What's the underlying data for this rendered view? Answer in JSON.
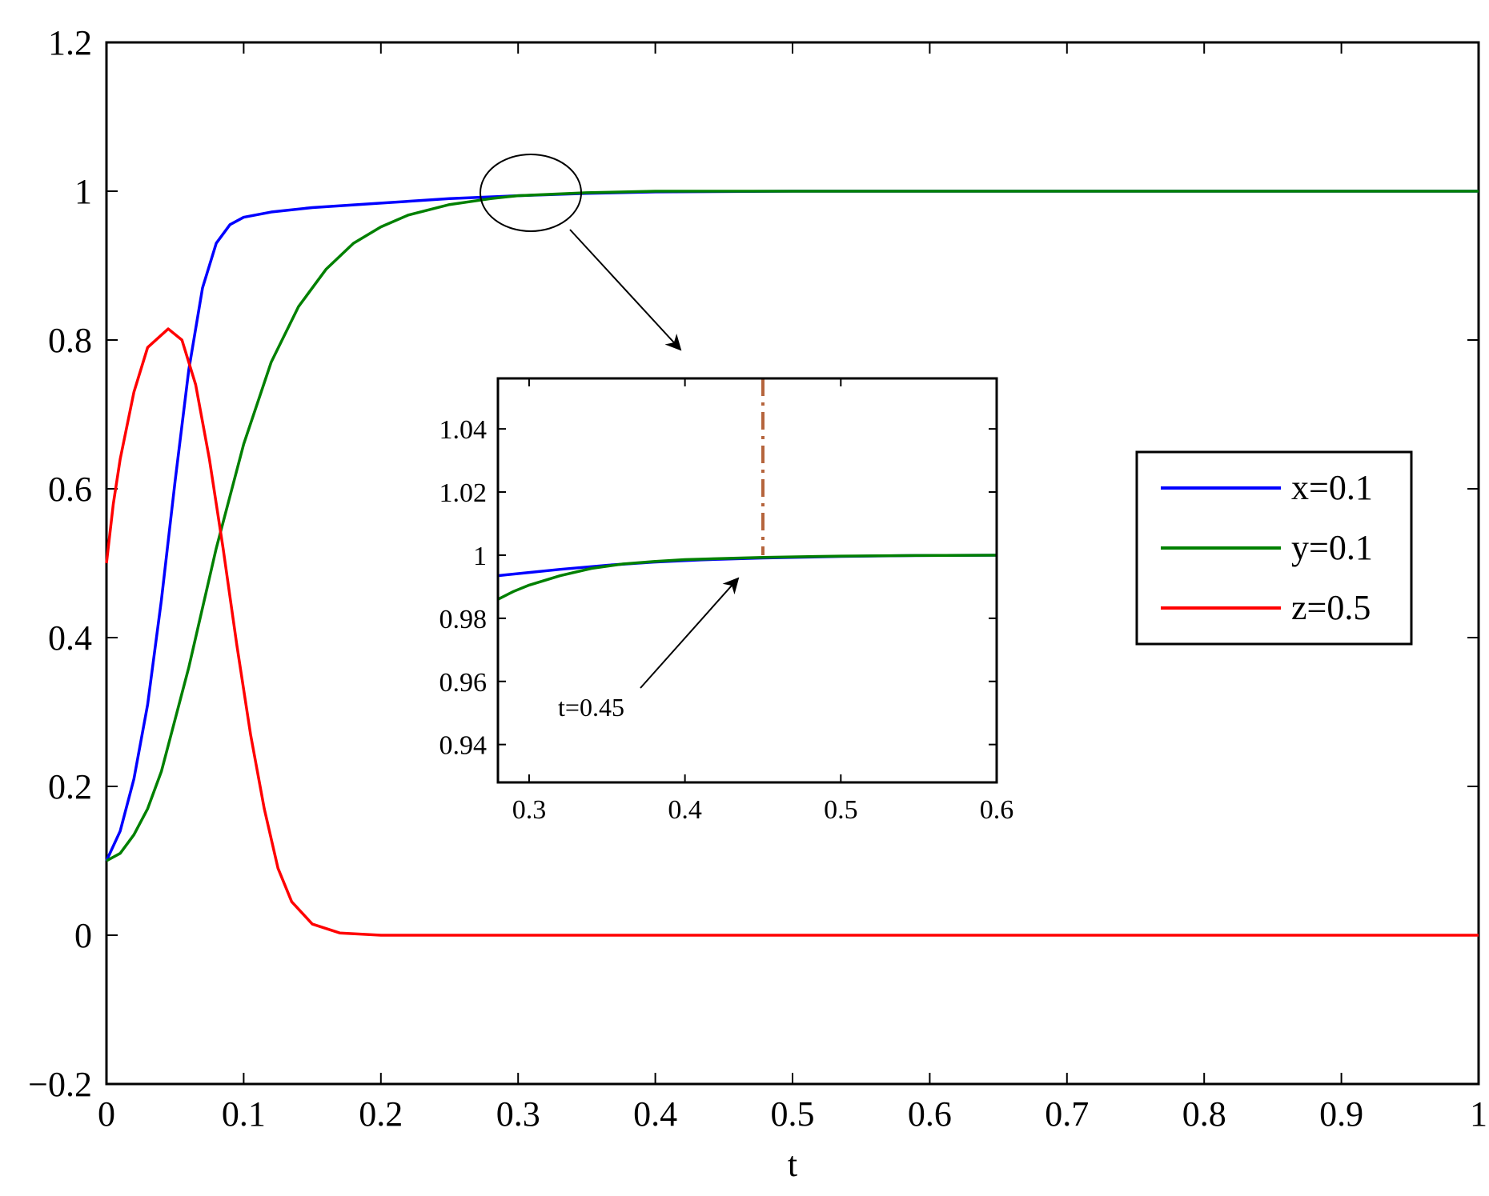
{
  "chart_data": [
    {
      "type": "line",
      "title": "",
      "xlabel": "t",
      "ylabel": "",
      "xlim": [
        0,
        1
      ],
      "ylim": [
        -0.2,
        1.2
      ],
      "x_ticks": [
        "0",
        "0.1",
        "0.2",
        "0.3",
        "0.4",
        "0.5",
        "0.6",
        "0.7",
        "0.8",
        "0.9",
        "1"
      ],
      "y_ticks": [
        "−0.2",
        "0",
        "0.2",
        "0.4",
        "0.6",
        "0.8",
        "1",
        "1.2"
      ],
      "grid": false,
      "legend_placement": "right",
      "series": [
        {
          "name": "x=0.1",
          "color": "#0000ff",
          "points": [
            [
              0,
              0.1
            ],
            [
              0.01,
              0.14
            ],
            [
              0.02,
              0.21
            ],
            [
              0.03,
              0.31
            ],
            [
              0.04,
              0.45
            ],
            [
              0.05,
              0.61
            ],
            [
              0.06,
              0.76
            ],
            [
              0.07,
              0.87
            ],
            [
              0.08,
              0.93
            ],
            [
              0.09,
              0.955
            ],
            [
              0.1,
              0.965
            ],
            [
              0.12,
              0.972
            ],
            [
              0.15,
              0.978
            ],
            [
              0.2,
              0.984
            ],
            [
              0.25,
              0.99
            ],
            [
              0.3,
              0.994
            ],
            [
              0.35,
              0.997
            ],
            [
              0.4,
              0.999
            ],
            [
              0.5,
              1.0
            ],
            [
              0.7,
              1.0
            ],
            [
              1.0,
              1.0
            ]
          ]
        },
        {
          "name": "y=0.1",
          "color": "#008000",
          "points": [
            [
              0,
              0.1
            ],
            [
              0.01,
              0.11
            ],
            [
              0.02,
              0.135
            ],
            [
              0.03,
              0.17
            ],
            [
              0.04,
              0.22
            ],
            [
              0.05,
              0.29
            ],
            [
              0.06,
              0.36
            ],
            [
              0.07,
              0.44
            ],
            [
              0.08,
              0.52
            ],
            [
              0.09,
              0.59
            ],
            [
              0.1,
              0.66
            ],
            [
              0.12,
              0.77
            ],
            [
              0.14,
              0.845
            ],
            [
              0.16,
              0.895
            ],
            [
              0.18,
              0.93
            ],
            [
              0.2,
              0.952
            ],
            [
              0.22,
              0.968
            ],
            [
              0.25,
              0.982
            ],
            [
              0.28,
              0.99
            ],
            [
              0.3,
              0.994
            ],
            [
              0.35,
              0.998
            ],
            [
              0.4,
              1.0
            ],
            [
              0.5,
              1.0
            ],
            [
              1.0,
              1.0
            ]
          ]
        },
        {
          "name": "z=0.5",
          "color": "#ff0000",
          "points": [
            [
              0,
              0.5
            ],
            [
              0.005,
              0.58
            ],
            [
              0.01,
              0.64
            ],
            [
              0.02,
              0.73
            ],
            [
              0.03,
              0.79
            ],
            [
              0.045,
              0.815
            ],
            [
              0.055,
              0.8
            ],
            [
              0.065,
              0.74
            ],
            [
              0.075,
              0.64
            ],
            [
              0.085,
              0.52
            ],
            [
              0.095,
              0.39
            ],
            [
              0.105,
              0.27
            ],
            [
              0.115,
              0.17
            ],
            [
              0.125,
              0.09
            ],
            [
              0.135,
              0.045
            ],
            [
              0.15,
              0.015
            ],
            [
              0.17,
              0.003
            ],
            [
              0.2,
              0.0
            ],
            [
              0.3,
              0.0
            ],
            [
              1.0,
              0.0
            ]
          ]
        }
      ],
      "annotations": [
        {
          "type": "ellipse",
          "text": ""
        },
        {
          "type": "arrow",
          "text": ""
        }
      ]
    },
    {
      "type": "line",
      "title": "",
      "xlabel": "",
      "ylabel": "",
      "xlim": [
        0.28,
        0.6
      ],
      "ylim": [
        0.928,
        1.056
      ],
      "x_ticks": [
        "0.3",
        "0.4",
        "0.5",
        "0.6"
      ],
      "y_ticks": [
        "0.94",
        "0.96",
        "0.98",
        "1",
        "1.02",
        "1.04"
      ],
      "grid": false,
      "series": [
        {
          "name": "x=0.1",
          "color": "#0000ff",
          "points": [
            [
              0.28,
              0.9935
            ],
            [
              0.3,
              0.9945
            ],
            [
              0.32,
              0.9955
            ],
            [
              0.35,
              0.9968
            ],
            [
              0.38,
              0.9978
            ],
            [
              0.41,
              0.9985
            ],
            [
              0.45,
              0.9991
            ],
            [
              0.5,
              0.9996
            ],
            [
              0.55,
              0.9999
            ],
            [
              0.6,
              1.0
            ]
          ]
        },
        {
          "name": "y=0.1",
          "color": "#008000",
          "points": [
            [
              0.28,
              0.986
            ],
            [
              0.29,
              0.9885
            ],
            [
              0.3,
              0.9905
            ],
            [
              0.32,
              0.9935
            ],
            [
              0.34,
              0.9958
            ],
            [
              0.36,
              0.9972
            ],
            [
              0.38,
              0.998
            ],
            [
              0.4,
              0.9986
            ],
            [
              0.45,
              0.9993
            ],
            [
              0.5,
              0.9997
            ],
            [
              0.55,
              0.9999
            ],
            [
              0.6,
              1.0
            ]
          ]
        }
      ],
      "marker_line": {
        "x": 0.45,
        "color": "#b5643c",
        "style": "dash-dot"
      },
      "annotations": [
        {
          "type": "arrow",
          "text": "t=0.45"
        }
      ]
    }
  ]
}
